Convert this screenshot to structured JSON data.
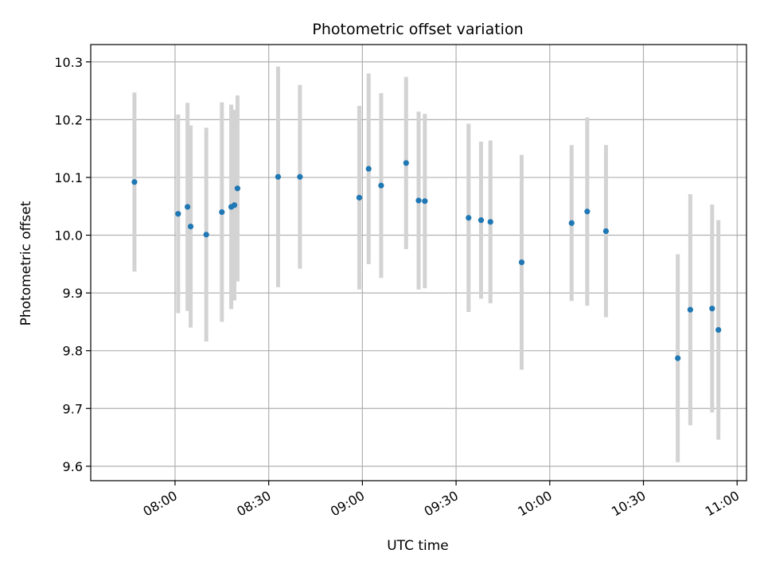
{
  "chart_data": {
    "type": "scatter",
    "title": "Photometric offset variation",
    "xlabel": "UTC time",
    "ylabel": "Photometric offset",
    "x_axis_kind": "time",
    "xlim": [
      "07:33",
      "11:03"
    ],
    "ylim": [
      9.575,
      10.33
    ],
    "x_ticks": [
      "08:00",
      "08:30",
      "09:00",
      "09:30",
      "10:00",
      "10:30",
      "11:00"
    ],
    "y_ticks": [
      9.6,
      9.7,
      9.8,
      9.9,
      10.0,
      10.1,
      10.2,
      10.3
    ],
    "y_tick_labels": [
      "9.6",
      "9.7",
      "9.8",
      "9.9",
      "10.0",
      "10.1",
      "10.2",
      "10.3"
    ],
    "grid": true,
    "point_color": "#1f77b4",
    "errorbar_color": "#d3d3d3",
    "points": [
      {
        "x": "07:47",
        "y": 10.092,
        "yerr": 0.155
      },
      {
        "x": "08:01",
        "y": 10.037,
        "yerr": 0.172
      },
      {
        "x": "08:04",
        "y": 10.049,
        "yerr": 0.18
      },
      {
        "x": "08:05",
        "y": 10.015,
        "yerr": 0.175
      },
      {
        "x": "08:10",
        "y": 10.001,
        "yerr": 0.185
      },
      {
        "x": "08:15",
        "y": 10.04,
        "yerr": 0.19
      },
      {
        "x": "08:18",
        "y": 10.049,
        "yerr": 0.177
      },
      {
        "x": "08:19",
        "y": 10.052,
        "yerr": 0.165
      },
      {
        "x": "08:20",
        "y": 10.081,
        "yerr": 0.161
      },
      {
        "x": "08:33",
        "y": 10.101,
        "yerr": 0.191
      },
      {
        "x": "08:40",
        "y": 10.101,
        "yerr": 0.159
      },
      {
        "x": "08:59",
        "y": 10.065,
        "yerr": 0.159
      },
      {
        "x": "09:02",
        "y": 10.115,
        "yerr": 0.165
      },
      {
        "x": "09:06",
        "y": 10.086,
        "yerr": 0.16
      },
      {
        "x": "09:14",
        "y": 10.125,
        "yerr": 0.149
      },
      {
        "x": "09:18",
        "y": 10.06,
        "yerr": 0.154
      },
      {
        "x": "09:20",
        "y": 10.059,
        "yerr": 0.151
      },
      {
        "x": "09:34",
        "y": 10.03,
        "yerr": 0.163
      },
      {
        "x": "09:38",
        "y": 10.026,
        "yerr": 0.136
      },
      {
        "x": "09:41",
        "y": 10.023,
        "yerr": 0.141
      },
      {
        "x": "09:51",
        "y": 9.953,
        "yerr": 0.186
      },
      {
        "x": "10:07",
        "y": 10.021,
        "yerr": 0.135
      },
      {
        "x": "10:12",
        "y": 10.041,
        "yerr": 0.163
      },
      {
        "x": "10:18",
        "y": 10.007,
        "yerr": 0.149
      },
      {
        "x": "10:41",
        "y": 9.787,
        "yerr": 0.18
      },
      {
        "x": "10:45",
        "y": 9.871,
        "yerr": 0.2
      },
      {
        "x": "10:52",
        "y": 9.873,
        "yerr": 0.18
      },
      {
        "x": "10:54",
        "y": 9.836,
        "yerr": 0.19
      }
    ]
  }
}
